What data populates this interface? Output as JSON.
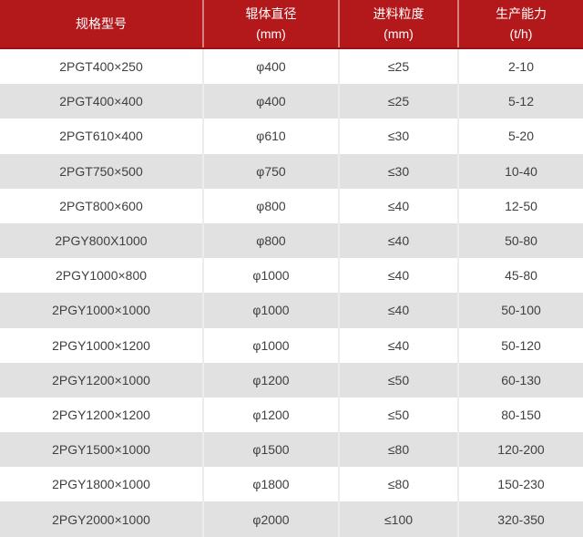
{
  "colors": {
    "header_bg": "#b3181b",
    "header_border": "#9c1113",
    "header_text": "#ffffff",
    "row_alt_bg": "#e1e1e1",
    "body_text": "#404040",
    "divider": "#ececec"
  },
  "table": {
    "columns": [
      {
        "label": "规格型号",
        "unit": ""
      },
      {
        "label": "辊体直径",
        "unit": "(mm)"
      },
      {
        "label": "进料粒度",
        "unit": "(mm)"
      },
      {
        "label": "生产能力",
        "unit": "(t/h)"
      }
    ],
    "rows": [
      {
        "model": "2PGT400×250",
        "roller_diameter": "φ400",
        "feed_size": "≤25",
        "capacity": "2-10"
      },
      {
        "model": "2PGT400×400",
        "roller_diameter": "φ400",
        "feed_size": "≤25",
        "capacity": "5-12"
      },
      {
        "model": "2PGT610×400",
        "roller_diameter": "φ610",
        "feed_size": "≤30",
        "capacity": "5-20"
      },
      {
        "model": "2PGT750×500",
        "roller_diameter": "φ750",
        "feed_size": "≤30",
        "capacity": "10-40"
      },
      {
        "model": "2PGT800×600",
        "roller_diameter": "φ800",
        "feed_size": "≤40",
        "capacity": "12-50"
      },
      {
        "model": "2PGY800X1000",
        "roller_diameter": "φ800",
        "feed_size": "≤40",
        "capacity": "50-80"
      },
      {
        "model": "2PGY1000×800",
        "roller_diameter": "φ1000",
        "feed_size": "≤40",
        "capacity": "45-80"
      },
      {
        "model": "2PGY1000×1000",
        "roller_diameter": "φ1000",
        "feed_size": "≤40",
        "capacity": "50-100"
      },
      {
        "model": "2PGY1000×1200",
        "roller_diameter": "φ1000",
        "feed_size": "≤40",
        "capacity": "50-120"
      },
      {
        "model": "2PGY1200×1000",
        "roller_diameter": "φ1200",
        "feed_size": "≤50",
        "capacity": "60-130"
      },
      {
        "model": "2PGY1200×1200",
        "roller_diameter": "φ1200",
        "feed_size": "≤50",
        "capacity": "80-150"
      },
      {
        "model": "2PGY1500×1000",
        "roller_diameter": "φ1500",
        "feed_size": "≤80",
        "capacity": "120-200"
      },
      {
        "model": "2PGY1800×1000",
        "roller_diameter": "φ1800",
        "feed_size": "≤80",
        "capacity": "150-230"
      },
      {
        "model": "2PGY2000×1000",
        "roller_diameter": "φ2000",
        "feed_size": "≤100",
        "capacity": "320-350"
      }
    ]
  }
}
